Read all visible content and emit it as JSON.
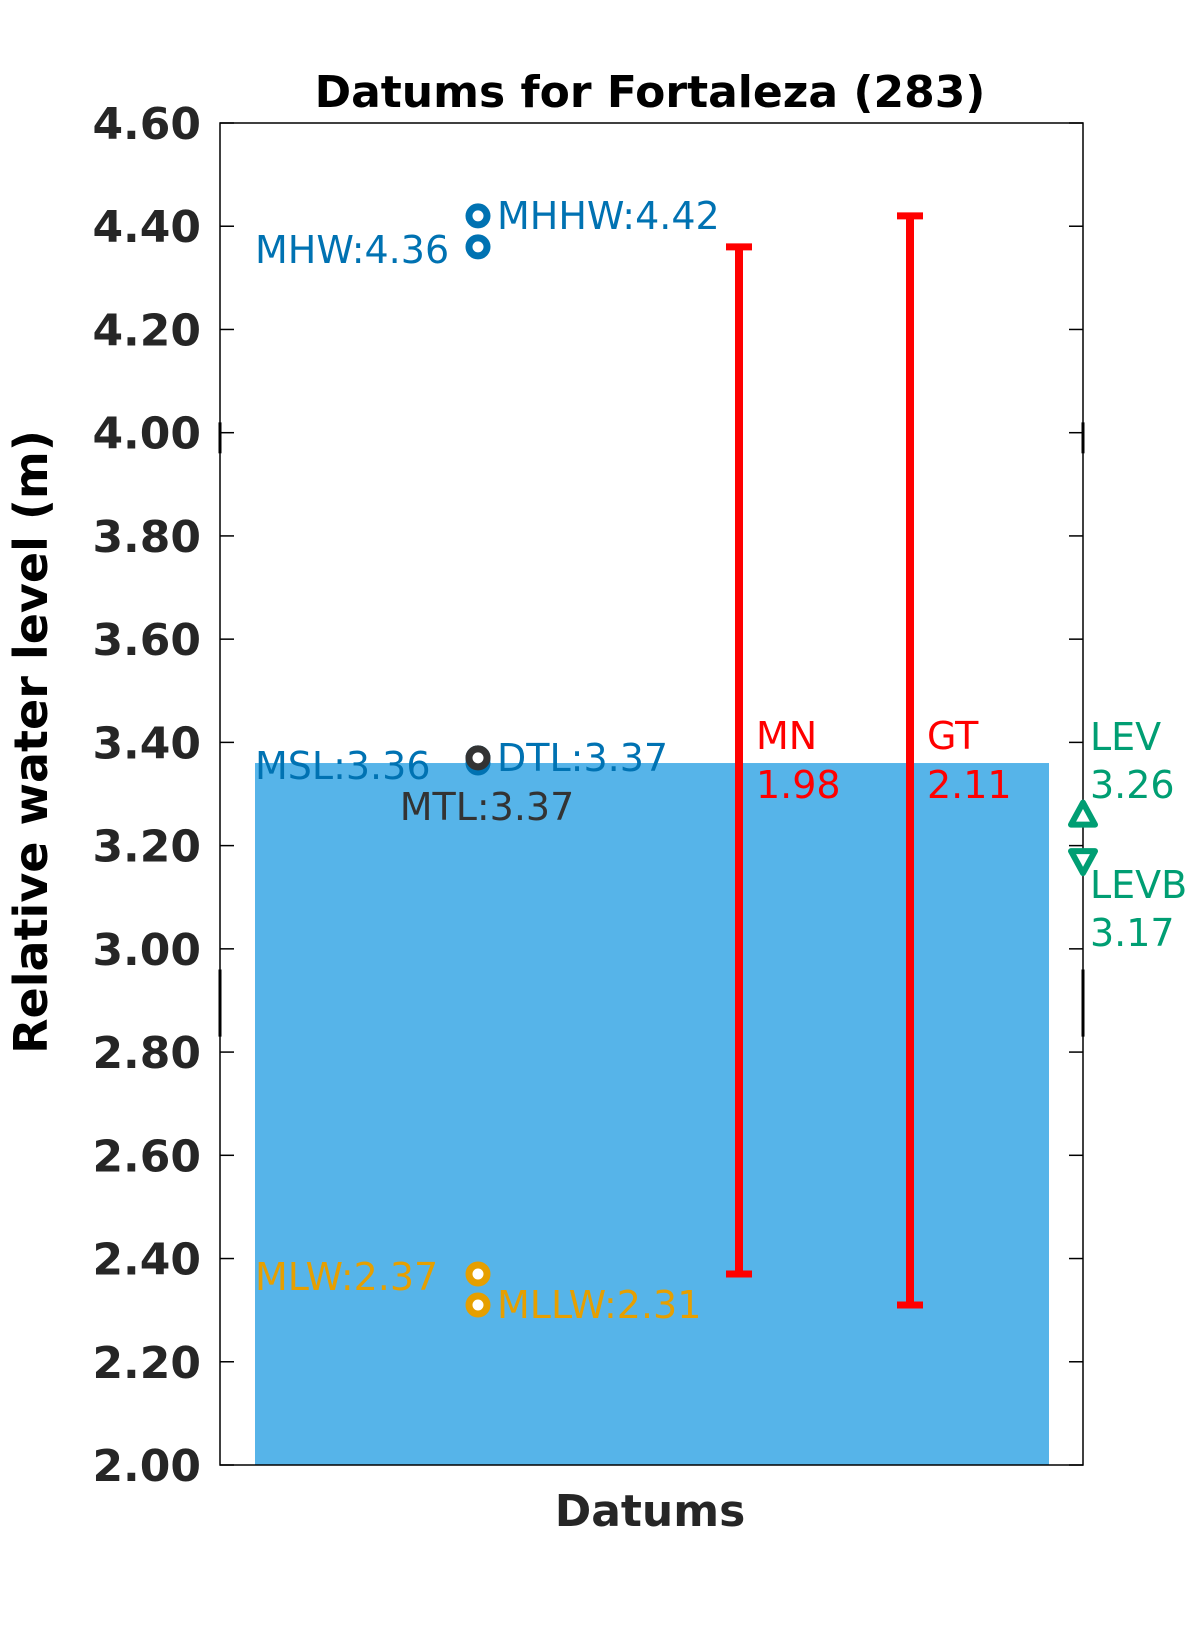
{
  "chart_data": {
    "type": "bar",
    "title": "Datums for Fortaleza (283)",
    "xlabel": "Datums",
    "ylabel": "Relative water level (m)",
    "ylim": [
      2.0,
      4.6
    ],
    "yticks": [
      "2.00",
      "2.20",
      "2.40",
      "2.60",
      "2.80",
      "3.00",
      "3.20",
      "3.40",
      "3.60",
      "3.80",
      "4.00",
      "4.20",
      "4.40",
      "4.60"
    ],
    "grid": false,
    "bar": {
      "value": 3.36,
      "color": "#56B4E9"
    },
    "points": [
      {
        "name": "MHHW",
        "label": "MHHW:4.42",
        "value": 4.42,
        "color": "#0072B2",
        "label_side": "right"
      },
      {
        "name": "MHW",
        "label": "MHW:4.36",
        "value": 4.36,
        "color": "#0072B2",
        "label_side": "left"
      },
      {
        "name": "DTL",
        "label": "DTL:3.37",
        "value": 3.37,
        "color": "#0072B2",
        "label_side": "right"
      },
      {
        "name": "MSL",
        "label": "MSL:3.36",
        "value": 3.36,
        "color": "#0072B2",
        "label_side": "left"
      },
      {
        "name": "MTL",
        "label": "MTL:3.37",
        "value": 3.37,
        "color": "#333333",
        "label_side": "below"
      },
      {
        "name": "MLW",
        "label": "MLW:2.37",
        "value": 2.37,
        "color": "#E69F00",
        "label_side": "left"
      },
      {
        "name": "MLLW",
        "label": "MLLW:2.31",
        "value": 2.31,
        "color": "#E69F00",
        "label_side": "right"
      }
    ],
    "ranges": [
      {
        "name": "MN",
        "value_label": "1.98",
        "low": 2.37,
        "high": 4.36,
        "color": "#FF0000"
      },
      {
        "name": "GT",
        "value_label": "2.11",
        "low": 2.31,
        "high": 4.42,
        "color": "#FF0000"
      }
    ],
    "extremes": [
      {
        "name": "LEV",
        "value_label": "3.26",
        "value": 3.26,
        "marker": "triangle-up",
        "color": "#009E73"
      },
      {
        "name": "LEVB",
        "value_label": "3.17",
        "value": 3.17,
        "marker": "triangle-down",
        "color": "#009E73"
      }
    ]
  }
}
